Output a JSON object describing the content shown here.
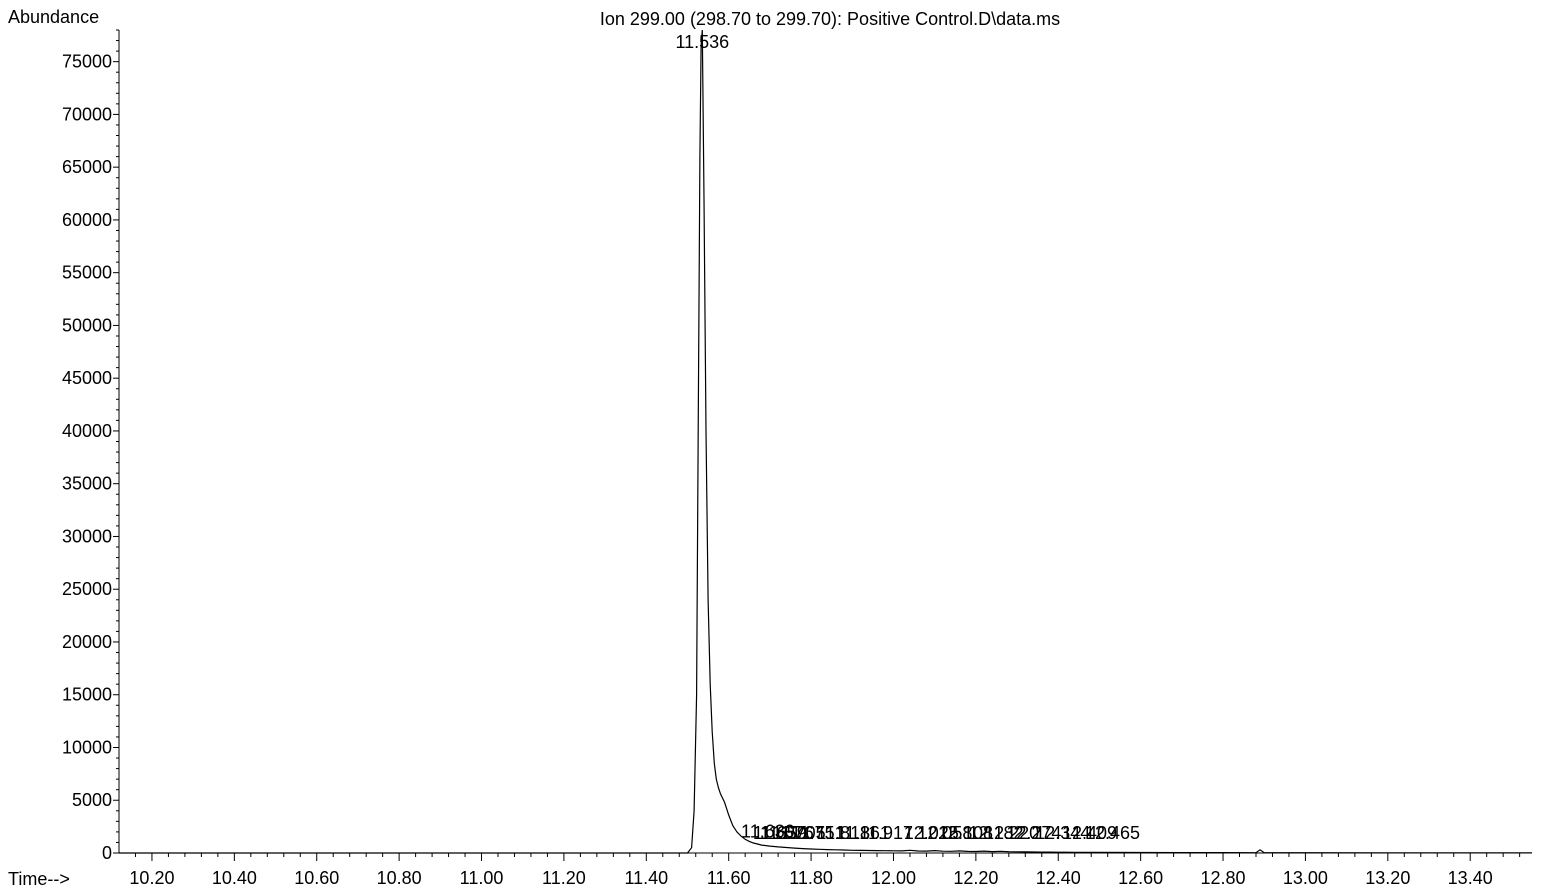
{
  "chart_data": {
    "type": "line",
    "title": "Ion 299.00 (298.70 to 299.70): Positive Control.D\\data.ms",
    "ylabel": "Abundance",
    "xlabel": "Time-->",
    "xlim": [
      10.12,
      13.55
    ],
    "ylim": [
      0,
      78000
    ],
    "x_ticks": [
      "10.20",
      "10.40",
      "10.60",
      "10.80",
      "11.00",
      "11.20",
      "11.40",
      "11.60",
      "11.80",
      "12.00",
      "12.20",
      "12.40",
      "12.60",
      "12.80",
      "13.00",
      "13.20",
      "13.40"
    ],
    "y_ticks": [
      "0",
      "5000",
      "10000",
      "15000",
      "20000",
      "25000",
      "30000",
      "35000",
      "40000",
      "45000",
      "50000",
      "55000",
      "60000",
      "65000",
      "70000",
      "75000"
    ],
    "grid": false,
    "line_color": "#000000",
    "series": [
      {
        "x": [
          10.12,
          11.5,
          11.51,
          11.516,
          11.522,
          11.526,
          11.53,
          11.533,
          11.536,
          11.54,
          11.545,
          11.55,
          11.555,
          11.56,
          11.565,
          11.57,
          11.575,
          11.58,
          11.59,
          11.6,
          11.61,
          11.62,
          11.63,
          11.64,
          11.65,
          11.66,
          11.67,
          11.68,
          11.7,
          11.72,
          11.74,
          11.76,
          11.78,
          11.8,
          11.82,
          11.84,
          11.86,
          11.88,
          11.9,
          11.92,
          11.94,
          11.96,
          11.98,
          12.0,
          12.02,
          12.04,
          12.06,
          12.08,
          12.1,
          12.12,
          12.14,
          12.16,
          12.18,
          12.2,
          12.22,
          12.24,
          12.26,
          12.28,
          12.3,
          12.32,
          12.34,
          12.36,
          12.38,
          12.4,
          12.42,
          12.44,
          12.46,
          12.48,
          12.5,
          12.6,
          12.7,
          12.8,
          12.88,
          12.89,
          12.9,
          13.0,
          13.2,
          13.4,
          13.55
        ],
        "y": [
          0,
          0,
          500,
          4000,
          15000,
          40000,
          66000,
          76500,
          78000,
          62000,
          40000,
          24000,
          16000,
          11500,
          8500,
          7000,
          6200,
          5600,
          4800,
          3600,
          2600,
          2000,
          1600,
          1300,
          1100,
          950,
          850,
          750,
          650,
          580,
          520,
          460,
          420,
          380,
          350,
          320,
          300,
          280,
          260,
          250,
          240,
          230,
          220,
          210,
          200,
          260,
          190,
          180,
          230,
          170,
          160,
          200,
          150,
          140,
          180,
          130,
          160,
          120,
          110,
          100,
          95,
          90,
          85,
          80,
          75,
          70,
          65,
          60,
          55,
          45,
          40,
          35,
          30,
          300,
          30,
          25,
          20,
          15,
          10
        ]
      }
    ],
    "peak_labels": [
      {
        "text": "11.536",
        "x": 11.536,
        "y": 78000
      },
      {
        "text": "11.630",
        "x": 11.63,
        "y": 1300
      },
      {
        "text": "11.659",
        "x": 11.659,
        "y": 1150
      },
      {
        "text": "11.676",
        "x": 11.676,
        "y": 1150
      },
      {
        "text": "11.705",
        "x": 11.705,
        "y": 1150
      },
      {
        "text": "11.751",
        "x": 11.751,
        "y": 1150
      },
      {
        "text": "11.813",
        "x": 11.813,
        "y": 1150
      },
      {
        "text": "11.861",
        "x": 11.861,
        "y": 1150
      },
      {
        "text": "11.917",
        "x": 11.917,
        "y": 1150
      },
      {
        "text": "12.025",
        "x": 12.025,
        "y": 1150
      },
      {
        "text": "12.058",
        "x": 12.058,
        "y": 1150
      },
      {
        "text": "12.108",
        "x": 12.108,
        "y": 1150
      },
      {
        "text": "12.182",
        "x": 12.182,
        "y": 1150
      },
      {
        "text": "12.220",
        "x": 12.22,
        "y": 1150
      },
      {
        "text": "12.274",
        "x": 12.274,
        "y": 1150
      },
      {
        "text": "12.344",
        "x": 12.344,
        "y": 1150
      },
      {
        "text": "12.409",
        "x": 12.409,
        "y": 1150
      },
      {
        "text": "12.465",
        "x": 12.465,
        "y": 1150
      }
    ]
  }
}
